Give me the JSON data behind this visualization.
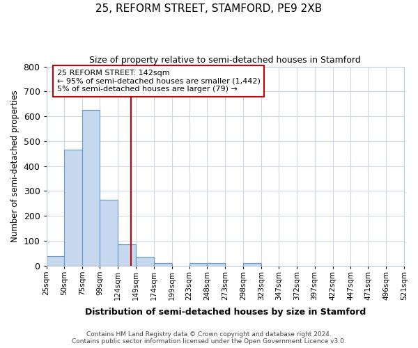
{
  "title1": "25, REFORM STREET, STAMFORD, PE9 2XB",
  "title2": "Size of property relative to semi-detached houses in Stamford",
  "xlabel": "Distribution of semi-detached houses by size in Stamford",
  "ylabel": "Number of semi-detached properties",
  "footnote1": "Contains HM Land Registry data © Crown copyright and database right 2024.",
  "footnote2": "Contains public sector information licensed under the Open Government Licence v3.0.",
  "property_size": 142,
  "annotation_line1": "25 REFORM STREET: 142sqm",
  "annotation_line2": "← 95% of semi-detached houses are smaller (1,442)",
  "annotation_line3": "5% of semi-detached houses are larger (79) →",
  "bar_left_edges": [
    25,
    50,
    75,
    99,
    124,
    149,
    174,
    199,
    223,
    248,
    273,
    298,
    323,
    347,
    372,
    397,
    422,
    447,
    471,
    496
  ],
  "bar_widths": [
    25,
    25,
    24,
    25,
    25,
    25,
    25,
    24,
    25,
    25,
    25,
    25,
    24,
    25,
    25,
    25,
    25,
    24,
    25,
    25
  ],
  "bar_heights": [
    38,
    465,
    625,
    265,
    85,
    35,
    10,
    0,
    10,
    10,
    0,
    10,
    0,
    0,
    0,
    0,
    0,
    0,
    0,
    0
  ],
  "tick_labels": [
    "25sqm",
    "50sqm",
    "75sqm",
    "99sqm",
    "124sqm",
    "149sqm",
    "174sqm",
    "199sqm",
    "223sqm",
    "248sqm",
    "273sqm",
    "298sqm",
    "323sqm",
    "347sqm",
    "372sqm",
    "397sqm",
    "422sqm",
    "447sqm",
    "471sqm",
    "496sqm",
    "521sqm"
  ],
  "tick_positions": [
    25,
    50,
    75,
    99,
    124,
    149,
    174,
    199,
    223,
    248,
    273,
    298,
    323,
    347,
    372,
    397,
    422,
    447,
    471,
    496,
    521
  ],
  "bar_color": "#c5d8ee",
  "bar_edge_color": "#6699cc",
  "grid_color": "#d0d8e8",
  "background_color": "#ffffff",
  "vline_color": "#cc0000",
  "box_edge_color": "#cc0000",
  "box_fill_color": "#ffffff",
  "ylim": [
    0,
    800
  ],
  "xlim": [
    25,
    521
  ]
}
